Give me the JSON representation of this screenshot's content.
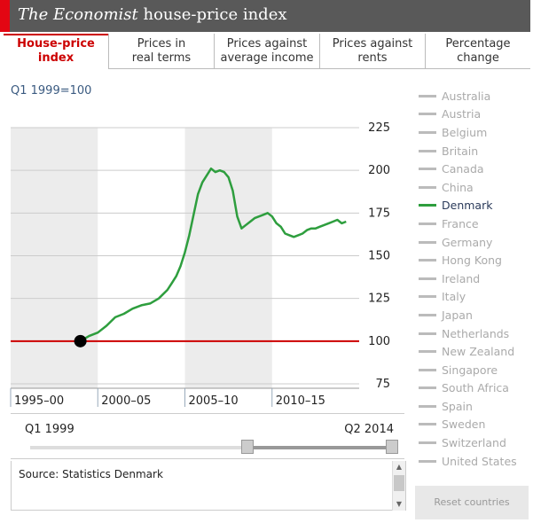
{
  "header": {
    "title_italic": "The Economist",
    "title_rest": " house-price index"
  },
  "tabs": [
    {
      "line1": "House-price",
      "line2": "index"
    },
    {
      "line1": "Prices in",
      "line2": "real terms"
    },
    {
      "line1": "Prices against",
      "line2": "average income"
    },
    {
      "line1": "Prices against",
      "line2": "rents"
    },
    {
      "line1": "Percentage",
      "line2": "change"
    }
  ],
  "base_label": "Q1 1999=100",
  "countries": [
    "Australia",
    "Austria",
    "Belgium",
    "Britain",
    "Canada",
    "China",
    "Denmark",
    "France",
    "Germany",
    "Hong Kong",
    "Ireland",
    "Italy",
    "Japan",
    "Netherlands",
    "New Zealand",
    "Singapore",
    "South Africa",
    "Spain",
    "Sweden",
    "Switzerland",
    "United States"
  ],
  "selected_country": "Denmark",
  "slider": {
    "start_label": "Q1 1999",
    "end_label": "Q2 2014",
    "start_fraction": 0.6,
    "end_fraction": 1.0
  },
  "source": "Source: Statistics Denmark",
  "reset_label": "Reset countries",
  "colors": {
    "series": "#2e9e3e",
    "baseline": "#cc0000",
    "accent": "#e30613",
    "band": "#ececec",
    "header": "#595959"
  },
  "chart_data": {
    "type": "line",
    "title": "House-price index",
    "ylabel": "Q1 1999=100",
    "xlim": [
      1995,
      2015
    ],
    "ylim": [
      75,
      225
    ],
    "yticks": [
      225,
      200,
      175,
      150,
      125,
      100,
      75
    ],
    "period_labels": [
      "1995–00",
      "2000–05",
      "2005–10",
      "2010–15"
    ],
    "baseline": 100,
    "marker": {
      "x": 1999.0,
      "y": 100
    },
    "series": [
      {
        "name": "Denmark",
        "x": [
          1999.0,
          1999.5,
          2000.0,
          2000.5,
          2001.0,
          2001.5,
          2002.0,
          2002.5,
          2003.0,
          2003.5,
          2004.0,
          2004.25,
          2004.5,
          2004.75,
          2005.0,
          2005.25,
          2005.5,
          2005.75,
          2006.0,
          2006.25,
          2006.5,
          2006.75,
          2007.0,
          2007.25,
          2007.5,
          2007.75,
          2008.0,
          2008.25,
          2008.5,
          2008.75,
          2009.0,
          2009.25,
          2009.5,
          2009.75,
          2010.0,
          2010.25,
          2010.5,
          2010.75,
          2011.0,
          2011.25,
          2011.5,
          2011.75,
          2012.0,
          2012.25,
          2012.5,
          2012.75,
          2013.0,
          2013.25,
          2013.5,
          2013.75,
          2014.0,
          2014.25
        ],
        "values": [
          100,
          103,
          105,
          109,
          114,
          116,
          119,
          121,
          122,
          125,
          130,
          134,
          138,
          144,
          152,
          162,
          174,
          186,
          193,
          197,
          201,
          199,
          200,
          199,
          196,
          188,
          173,
          166,
          168,
          170,
          172,
          173,
          174,
          175,
          173,
          169,
          167,
          163,
          162,
          161,
          162,
          163,
          165,
          166,
          166,
          167,
          168,
          169,
          170,
          171,
          169,
          170
        ]
      }
    ]
  }
}
